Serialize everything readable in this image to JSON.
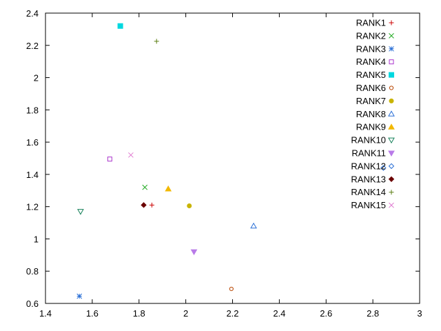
{
  "chart_data": {
    "type": "scatter",
    "title": "",
    "xlabel": "",
    "ylabel": "",
    "xlim": [
      1.4,
      3.0
    ],
    "ylim": [
      0.6,
      2.4
    ],
    "xticks": [
      "1.4",
      "1.6",
      "1.8",
      "2",
      "2.2",
      "2.4",
      "2.6",
      "2.8",
      "3"
    ],
    "yticks": [
      "0.6",
      "0.8",
      "1",
      "1.2",
      "1.4",
      "1.6",
      "1.8",
      "2",
      "2.2",
      "2.4"
    ],
    "grid": false,
    "legend_position": "top-right",
    "series": [
      {
        "name": "RANK1",
        "marker": "plus",
        "color": "#cc0000",
        "points": [
          [
            1.855,
            1.21
          ]
        ]
      },
      {
        "name": "RANK2",
        "marker": "cross",
        "color": "#22aa22",
        "points": [
          [
            1.825,
            1.32
          ]
        ]
      },
      {
        "name": "RANK3",
        "marker": "star",
        "color": "#2a6fd6",
        "points": [
          [
            1.545,
            0.645
          ]
        ]
      },
      {
        "name": "RANK4",
        "marker": "square-open",
        "color": "#aa33cc",
        "points": [
          [
            1.675,
            1.495
          ]
        ]
      },
      {
        "name": "RANK5",
        "marker": "square-filled",
        "color": "#00d8e0",
        "points": [
          [
            1.72,
            2.32
          ]
        ]
      },
      {
        "name": "RANK6",
        "marker": "circle-open",
        "color": "#b84500",
        "points": [
          [
            2.195,
            0.69
          ]
        ]
      },
      {
        "name": "RANK7",
        "marker": "circle-filled",
        "color": "#c9b400",
        "points": [
          [
            2.015,
            1.205
          ]
        ]
      },
      {
        "name": "RANK8",
        "marker": "triangle-open",
        "color": "#2a6fd6",
        "points": [
          [
            2.29,
            1.08
          ]
        ]
      },
      {
        "name": "RANK9",
        "marker": "triangle-filled",
        "color": "#f2b800",
        "points": [
          [
            1.925,
            1.31
          ]
        ]
      },
      {
        "name": "RANK10",
        "marker": "tri-down-open",
        "color": "#16815a",
        "points": [
          [
            1.55,
            1.17
          ]
        ]
      },
      {
        "name": "RANK11",
        "marker": "tri-down-filled",
        "color": "#b97be8",
        "points": [
          [
            2.035,
            0.92
          ]
        ]
      },
      {
        "name": "RANK12",
        "marker": "diamond-open",
        "color": "#2a6fd6",
        "points": [
          [
            2.845,
            1.44
          ]
        ]
      },
      {
        "name": "RANK13",
        "marker": "diamond-filled",
        "color": "#6b0000",
        "points": [
          [
            1.82,
            1.21
          ]
        ]
      },
      {
        "name": "RANK14",
        "marker": "plus",
        "color": "#5a7d10",
        "points": [
          [
            1.875,
            2.225
          ]
        ]
      },
      {
        "name": "RANK15",
        "marker": "cross",
        "color": "#e07ad0",
        "points": [
          [
            1.765,
            1.52
          ]
        ]
      }
    ]
  }
}
